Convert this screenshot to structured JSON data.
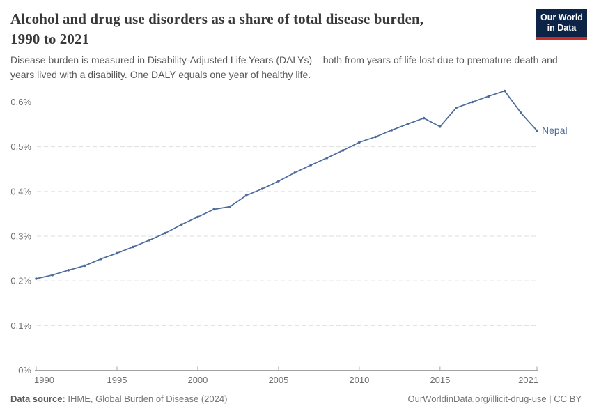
{
  "header": {
    "title_lines": [
      "Alcohol and drug use disorders as a share of total disease burden,",
      "1990 to 2021"
    ],
    "subtitle": "Disease burden is measured in Disability-Adjusted Life Years (DALYs) – both from years of life lost due to premature death and years lived with a disability. One DALY equals one year of healthy life.",
    "logo": {
      "line1": "Our World",
      "line2": "in Data",
      "bg_color": "#0d2446",
      "accent_color": "#c62d28"
    }
  },
  "chart_data": {
    "type": "line",
    "title": "Alcohol and drug use disorders as a share of total disease burden, 1990 to 2021",
    "xlabel": "",
    "ylabel": "",
    "unit": "%",
    "grid": "horizontal-dashed",
    "legend_position": "end-of-line-label",
    "ylim": [
      0,
      0.6
    ],
    "ytick_values": [
      0,
      0.1,
      0.2,
      0.3,
      0.4,
      0.5,
      0.6
    ],
    "ytick_labels": [
      "0%",
      "0.1%",
      "0.2%",
      "0.3%",
      "0.4%",
      "0.5%",
      "0.6%"
    ],
    "xticks": [
      1990,
      1995,
      2000,
      2005,
      2010,
      2015,
      2021
    ],
    "x": [
      1990,
      1991,
      1992,
      1993,
      1994,
      1995,
      1996,
      1997,
      1998,
      1999,
      2000,
      2001,
      2002,
      2003,
      2004,
      2005,
      2006,
      2007,
      2008,
      2009,
      2010,
      2011,
      2012,
      2013,
      2014,
      2015,
      2016,
      2017,
      2018,
      2019,
      2020,
      2021
    ],
    "series": [
      {
        "name": "Nepal",
        "color": "#4c6a9c",
        "values": [
          0.205,
          0.213,
          0.224,
          0.234,
          0.249,
          0.262,
          0.276,
          0.291,
          0.307,
          0.326,
          0.343,
          0.36,
          0.366,
          0.391,
          0.406,
          0.423,
          0.442,
          0.459,
          0.475,
          0.492,
          0.51,
          0.522,
          0.537,
          0.551,
          0.564,
          0.545,
          0.587,
          0.6,
          0.613,
          0.625,
          0.576,
          0.536
        ]
      }
    ]
  },
  "footer": {
    "datasource_label": "Data source:",
    "datasource_value": "IHME, Global Burden of Disease (2024)",
    "link": "OurWorldinData.org/illicit-drug-use | CC BY"
  }
}
